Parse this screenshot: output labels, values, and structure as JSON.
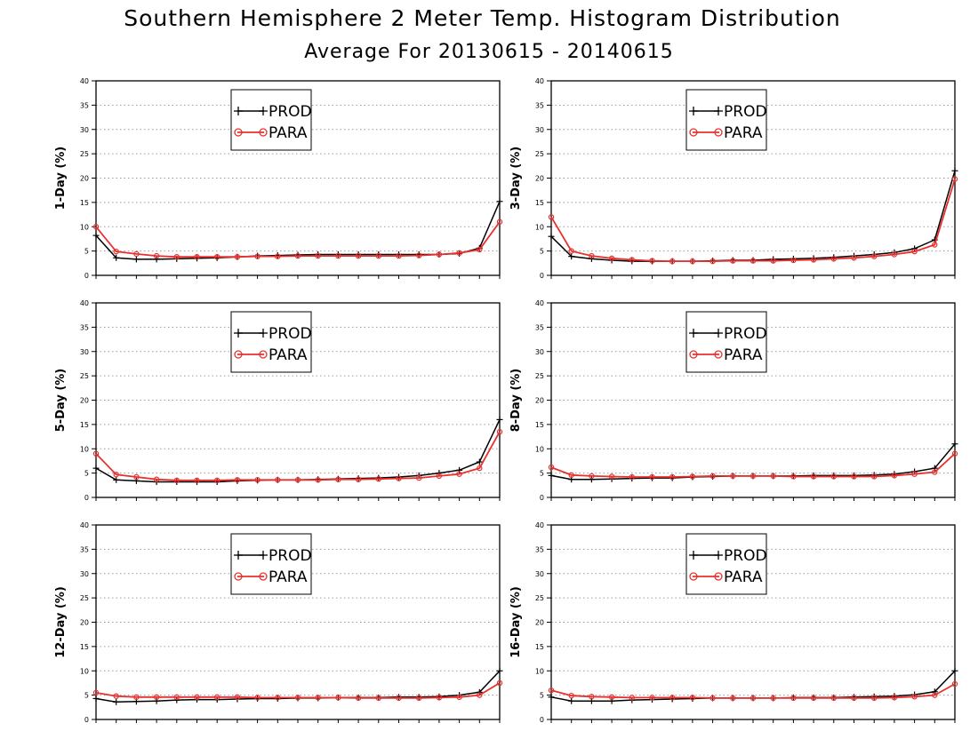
{
  "figure": {
    "title": "Southern Hemisphere 2 Meter Temp. Histogram Distribution",
    "subtitle": "Average For 20130615 - 20140615"
  },
  "colors": {
    "prod": "#000000",
    "para": "#e8312f",
    "grid": "#9a9a9a"
  },
  "chart_data": [
    {
      "type": "line",
      "ylabel": "1-Day (%)",
      "ylim": [
        0,
        40
      ],
      "yticks": [
        0,
        5,
        10,
        15,
        20,
        25,
        30,
        35,
        40
      ],
      "grid": true,
      "legend": "top-center",
      "x": [
        1,
        2,
        3,
        4,
        5,
        6,
        7,
        8,
        9,
        10,
        11,
        12,
        13,
        14,
        15,
        16,
        17,
        18,
        19,
        20,
        21
      ],
      "series": [
        {
          "name": "PROD",
          "marker": "plus",
          "values": [
            8.2,
            3.6,
            3.3,
            3.3,
            3.4,
            3.5,
            3.6,
            3.8,
            4.0,
            4.1,
            4.2,
            4.3,
            4.3,
            4.3,
            4.3,
            4.3,
            4.3,
            4.3,
            4.5,
            5.6,
            15.2
          ]
        },
        {
          "name": "PARA",
          "marker": "circle",
          "values": [
            10.0,
            4.9,
            4.4,
            4.0,
            3.8,
            3.8,
            3.8,
            3.8,
            3.9,
            3.9,
            4.0,
            4.0,
            4.0,
            4.0,
            4.0,
            4.0,
            4.1,
            4.3,
            4.6,
            5.3,
            11.0
          ]
        }
      ]
    },
    {
      "type": "line",
      "ylabel": "3-Day (%)",
      "ylim": [
        0,
        40
      ],
      "yticks": [
        0,
        5,
        10,
        15,
        20,
        25,
        30,
        35,
        40
      ],
      "grid": true,
      "legend": "top-center",
      "x": [
        1,
        2,
        3,
        4,
        5,
        6,
        7,
        8,
        9,
        10,
        11,
        12,
        13,
        14,
        15,
        16,
        17,
        18,
        19,
        20,
        21
      ],
      "series": [
        {
          "name": "PROD",
          "marker": "plus",
          "values": [
            8.0,
            3.9,
            3.4,
            3.1,
            2.9,
            2.9,
            2.9,
            2.9,
            3.0,
            3.1,
            3.1,
            3.3,
            3.4,
            3.5,
            3.7,
            4.0,
            4.3,
            4.7,
            5.5,
            7.3,
            21.5
          ]
        },
        {
          "name": "PARA",
          "marker": "circle",
          "values": [
            12.0,
            5.0,
            4.0,
            3.5,
            3.2,
            3.0,
            2.9,
            2.9,
            2.9,
            3.0,
            3.0,
            3.0,
            3.1,
            3.2,
            3.4,
            3.6,
            3.9,
            4.3,
            4.9,
            6.3,
            19.8
          ]
        }
      ]
    },
    {
      "type": "line",
      "ylabel": "5-Day (%)",
      "ylim": [
        0,
        40
      ],
      "yticks": [
        0,
        5,
        10,
        15,
        20,
        25,
        30,
        35,
        40
      ],
      "grid": true,
      "legend": "top-center",
      "x": [
        1,
        2,
        3,
        4,
        5,
        6,
        7,
        8,
        9,
        10,
        11,
        12,
        13,
        14,
        15,
        16,
        17,
        18,
        19,
        20,
        21
      ],
      "series": [
        {
          "name": "PROD",
          "marker": "plus",
          "values": [
            6.0,
            3.6,
            3.4,
            3.2,
            3.2,
            3.2,
            3.2,
            3.4,
            3.5,
            3.6,
            3.6,
            3.7,
            3.8,
            3.9,
            4.0,
            4.2,
            4.5,
            5.0,
            5.6,
            7.3,
            16.0
          ]
        },
        {
          "name": "PARA",
          "marker": "circle",
          "values": [
            9.0,
            4.7,
            4.2,
            3.7,
            3.5,
            3.5,
            3.5,
            3.6,
            3.6,
            3.6,
            3.6,
            3.6,
            3.7,
            3.7,
            3.8,
            3.9,
            4.0,
            4.4,
            4.8,
            6.0,
            13.5
          ]
        }
      ]
    },
    {
      "type": "line",
      "ylabel": "8-Day (%)",
      "ylim": [
        0,
        40
      ],
      "yticks": [
        0,
        5,
        10,
        15,
        20,
        25,
        30,
        35,
        40
      ],
      "grid": true,
      "legend": "top-center",
      "x": [
        1,
        2,
        3,
        4,
        5,
        6,
        7,
        8,
        9,
        10,
        11,
        12,
        13,
        14,
        15,
        16,
        17,
        18,
        19,
        20,
        21
      ],
      "series": [
        {
          "name": "PROD",
          "marker": "plus",
          "values": [
            4.5,
            3.7,
            3.7,
            3.8,
            3.9,
            4.0,
            4.0,
            4.2,
            4.3,
            4.4,
            4.4,
            4.4,
            4.4,
            4.5,
            4.5,
            4.5,
            4.6,
            4.8,
            5.3,
            6.0,
            11.0
          ]
        },
        {
          "name": "PARA",
          "marker": "circle",
          "values": [
            6.2,
            4.6,
            4.4,
            4.3,
            4.2,
            4.2,
            4.2,
            4.3,
            4.4,
            4.4,
            4.4,
            4.4,
            4.3,
            4.3,
            4.3,
            4.3,
            4.3,
            4.5,
            4.8,
            5.2,
            9.0
          ]
        }
      ]
    },
    {
      "type": "line",
      "ylabel": "12-Day (%)",
      "ylim": [
        0,
        40
      ],
      "yticks": [
        0,
        5,
        10,
        15,
        20,
        25,
        30,
        35,
        40
      ],
      "grid": true,
      "legend": "top-center",
      "x": [
        1,
        2,
        3,
        4,
        5,
        6,
        7,
        8,
        9,
        10,
        11,
        12,
        13,
        14,
        15,
        16,
        17,
        18,
        19,
        20,
        21
      ],
      "series": [
        {
          "name": "PROD",
          "marker": "plus",
          "values": [
            4.3,
            3.6,
            3.7,
            3.8,
            4.0,
            4.1,
            4.1,
            4.2,
            4.3,
            4.3,
            4.4,
            4.4,
            4.5,
            4.5,
            4.5,
            4.6,
            4.6,
            4.7,
            5.0,
            5.6,
            10.0
          ]
        },
        {
          "name": "PARA",
          "marker": "circle",
          "values": [
            5.5,
            4.8,
            4.6,
            4.6,
            4.6,
            4.6,
            4.6,
            4.6,
            4.5,
            4.5,
            4.5,
            4.5,
            4.5,
            4.4,
            4.4,
            4.4,
            4.4,
            4.5,
            4.6,
            5.0,
            7.5
          ]
        }
      ]
    },
    {
      "type": "line",
      "ylabel": "16-Day (%)",
      "ylim": [
        0,
        40
      ],
      "yticks": [
        0,
        5,
        10,
        15,
        20,
        25,
        30,
        35,
        40
      ],
      "grid": true,
      "legend": "top-center",
      "x": [
        1,
        2,
        3,
        4,
        5,
        6,
        7,
        8,
        9,
        10,
        11,
        12,
        13,
        14,
        15,
        16,
        17,
        18,
        19,
        20,
        21
      ],
      "series": [
        {
          "name": "PROD",
          "marker": "plus",
          "values": [
            4.6,
            3.8,
            3.8,
            3.8,
            4.0,
            4.1,
            4.2,
            4.3,
            4.4,
            4.4,
            4.4,
            4.4,
            4.5,
            4.5,
            4.5,
            4.6,
            4.7,
            4.8,
            5.1,
            5.7,
            10.0
          ]
        },
        {
          "name": "PARA",
          "marker": "circle",
          "values": [
            6.0,
            4.9,
            4.7,
            4.6,
            4.5,
            4.5,
            4.5,
            4.5,
            4.4,
            4.4,
            4.4,
            4.4,
            4.4,
            4.4,
            4.4,
            4.4,
            4.4,
            4.5,
            4.7,
            5.0,
            7.3
          ]
        }
      ]
    }
  ]
}
